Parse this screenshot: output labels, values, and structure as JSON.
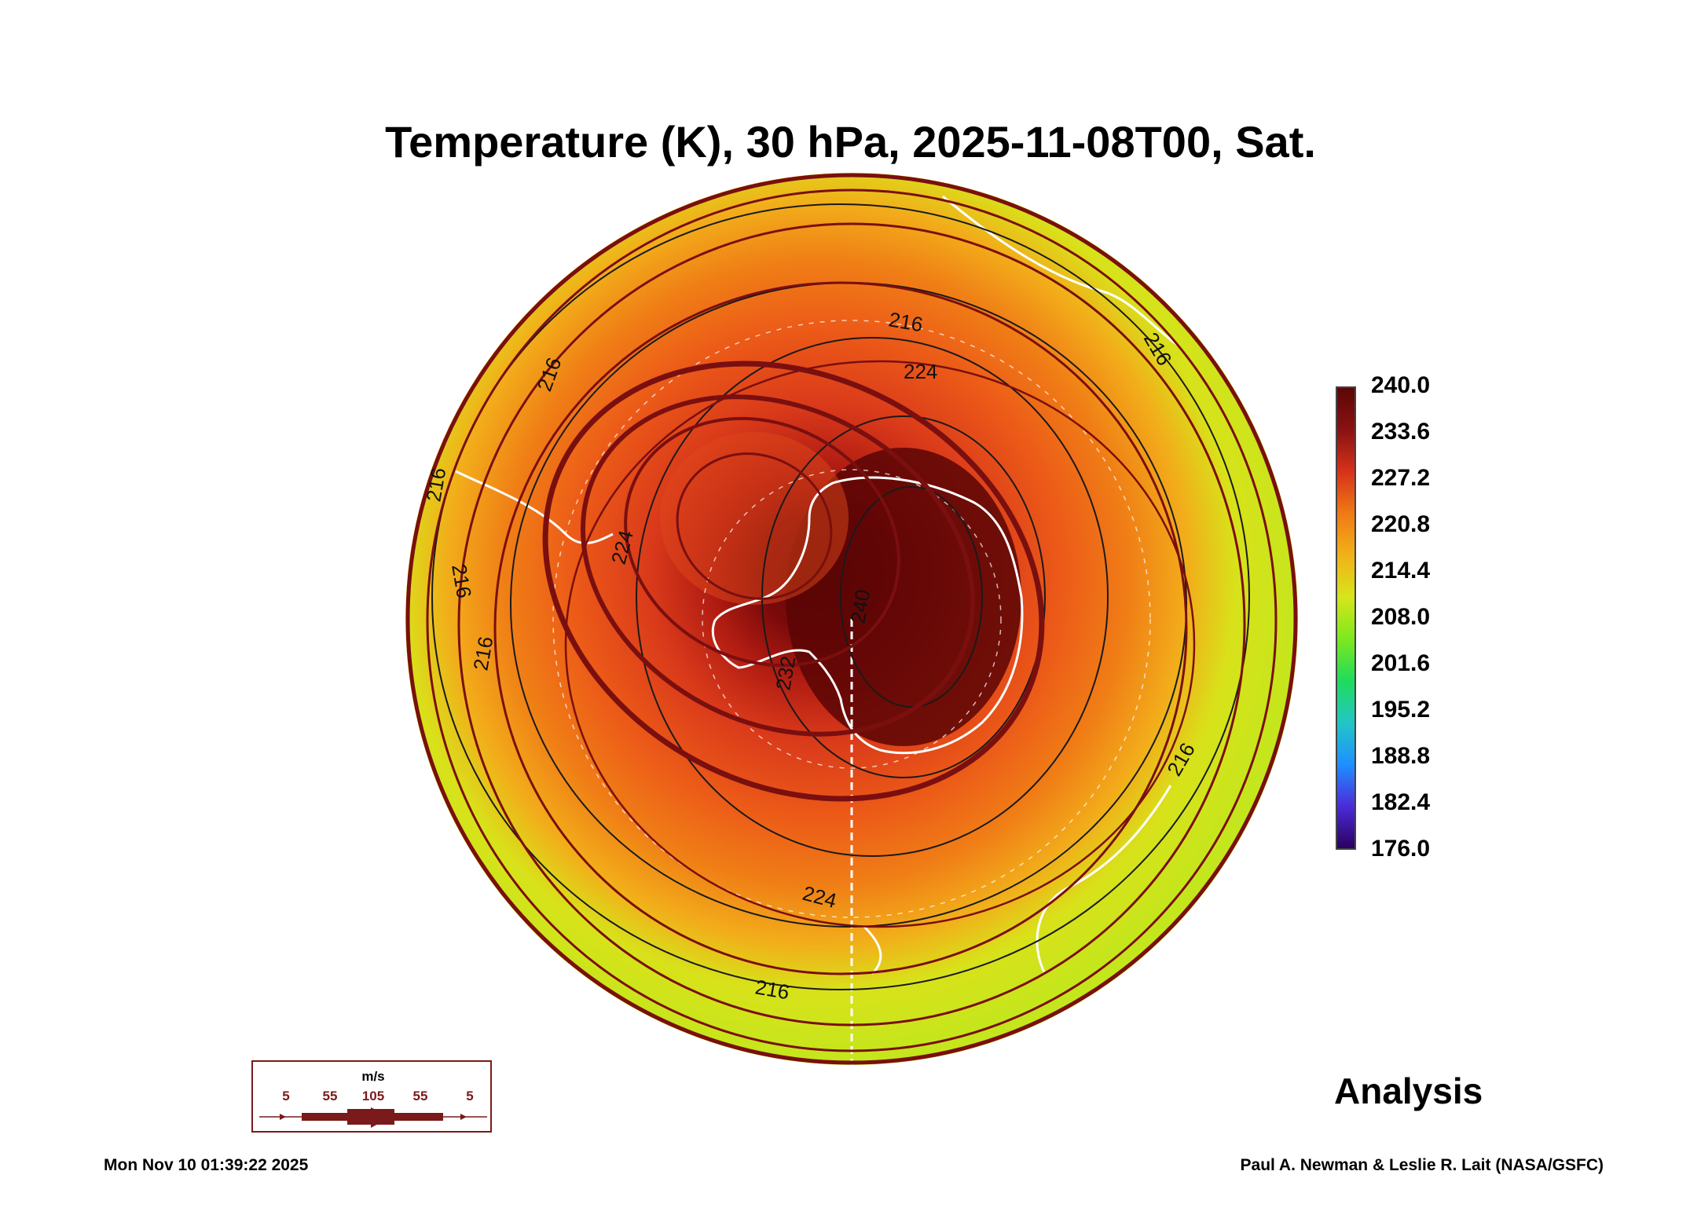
{
  "title": "Temperature (K), 30 hPa, 2025-11-08T00, Sat.",
  "colorbar": {
    "ticks": [
      "240.0",
      "233.6",
      "227.2",
      "220.8",
      "214.4",
      "208.0",
      "201.6",
      "195.2",
      "188.8",
      "182.4",
      "176.0"
    ],
    "colors": [
      "#2a0060",
      "#4b2bd9",
      "#1e90ff",
      "#22c6c6",
      "#1edc5c",
      "#7de81e",
      "#d6e61a",
      "#f2b11a",
      "#f07a14",
      "#d6321a",
      "#8a1212",
      "#5c0606"
    ]
  },
  "contour_labels": [
    "216",
    "216",
    "216",
    "216",
    "216",
    "216",
    "216",
    "224",
    "224",
    "224",
    "232",
    "240",
    "224",
    "216"
  ],
  "wind_legend": {
    "unit": "m/s",
    "speeds": [
      "5",
      "55",
      "105",
      "55",
      "5"
    ]
  },
  "analysis_label": "Analysis",
  "timestamp": "Mon Nov 10 01:39:22 2025",
  "credit": "Paul A. Newman & Leslie R. Lait (NASA/GSFC)"
}
